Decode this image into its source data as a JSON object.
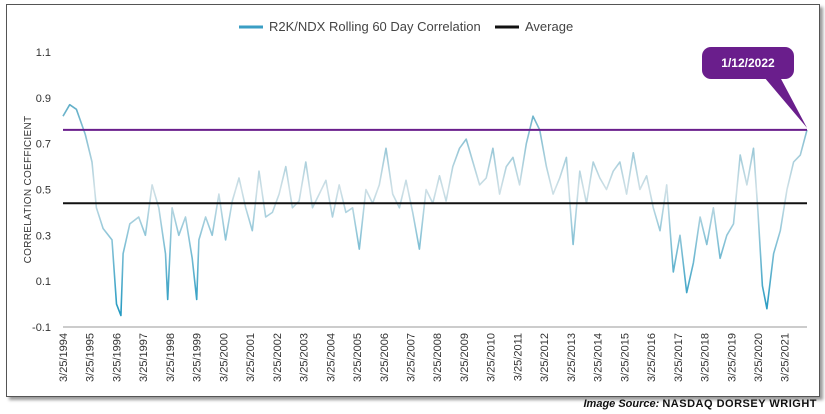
{
  "chart_data": {
    "type": "line",
    "title": "",
    "ylabel": "CORRELATION COEFFICIENT",
    "xlabel": "",
    "ylim": [
      -0.1,
      1.1
    ],
    "yticks": [
      "1.1",
      "0.9",
      "0.7",
      "0.5",
      "0.3",
      "0.1",
      "-0.1"
    ],
    "xticks": [
      "3/25/1994",
      "3/25/1995",
      "3/25/1996",
      "3/25/1997",
      "3/25/1998",
      "3/25/1999",
      "3/25/2000",
      "3/25/2001",
      "3/25/2002",
      "3/25/2003",
      "3/25/2004",
      "3/25/2005",
      "3/25/2006",
      "3/25/2007",
      "3/25/2008",
      "3/25/2009",
      "3/25/2010",
      "3/25/2011",
      "3/25/2012",
      "3/25/2013",
      "3/25/2014",
      "3/25/2015",
      "3/25/2016",
      "3/25/2017",
      "3/25/2018",
      "3/25/2019",
      "3/25/2020",
      "3/25/2021"
    ],
    "legend_position": "top",
    "grid": false,
    "series": [
      {
        "name": "R2K/NDX Rolling 60 Day Correlation",
        "color": "#3a9ec4",
        "x": [
          "1994-03",
          "1994-06",
          "1994-09",
          "1995-01",
          "1995-04",
          "1995-06",
          "1995-09",
          "1996-01",
          "1996-03",
          "1996-05",
          "1996-06",
          "1996-09",
          "1997-01",
          "1997-04",
          "1997-07",
          "1997-10",
          "1998-01",
          "1998-02",
          "1998-04",
          "1998-07",
          "1998-10",
          "1999-01",
          "1999-03",
          "1999-04",
          "1999-07",
          "1999-10",
          "2000-01",
          "2000-04",
          "2000-07",
          "2000-10",
          "2001-01",
          "2001-04",
          "2001-07",
          "2001-10",
          "2002-01",
          "2002-04",
          "2002-07",
          "2002-10",
          "2003-01",
          "2003-04",
          "2003-07",
          "2003-10",
          "2004-01",
          "2004-04",
          "2004-07",
          "2004-10",
          "2005-01",
          "2005-04",
          "2005-07",
          "2005-10",
          "2006-01",
          "2006-04",
          "2006-07",
          "2006-10",
          "2007-01",
          "2007-04",
          "2007-07",
          "2007-10",
          "2008-01",
          "2008-04",
          "2008-07",
          "2008-10",
          "2009-01",
          "2009-04",
          "2009-07",
          "2009-10",
          "2010-01",
          "2010-04",
          "2010-07",
          "2010-10",
          "2011-01",
          "2011-04",
          "2011-07",
          "2011-10",
          "2012-01",
          "2012-04",
          "2012-07",
          "2012-10",
          "2013-01",
          "2013-04",
          "2013-07",
          "2013-10",
          "2014-01",
          "2014-04",
          "2014-07",
          "2014-10",
          "2015-01",
          "2015-04",
          "2015-07",
          "2015-10",
          "2016-01",
          "2016-04",
          "2016-07",
          "2016-10",
          "2017-01",
          "2017-04",
          "2017-07",
          "2017-10",
          "2018-01",
          "2018-04",
          "2018-07",
          "2018-10",
          "2019-01",
          "2019-04",
          "2019-07",
          "2019-10",
          "2020-01",
          "2020-03",
          "2020-05",
          "2020-07",
          "2020-10",
          "2021-01",
          "2021-04",
          "2021-07",
          "2021-10",
          "2022-01"
        ],
        "values": [
          0.82,
          0.87,
          0.85,
          0.74,
          0.62,
          0.42,
          0.33,
          0.28,
          0.0,
          -0.05,
          0.22,
          0.35,
          0.38,
          0.3,
          0.52,
          0.42,
          0.22,
          0.02,
          0.42,
          0.3,
          0.38,
          0.2,
          0.02,
          0.28,
          0.38,
          0.3,
          0.48,
          0.28,
          0.45,
          0.55,
          0.42,
          0.32,
          0.58,
          0.38,
          0.4,
          0.48,
          0.6,
          0.42,
          0.45,
          0.62,
          0.42,
          0.48,
          0.54,
          0.38,
          0.52,
          0.4,
          0.42,
          0.24,
          0.5,
          0.44,
          0.52,
          0.68,
          0.48,
          0.42,
          0.54,
          0.4,
          0.24,
          0.5,
          0.44,
          0.56,
          0.45,
          0.6,
          0.68,
          0.72,
          0.62,
          0.52,
          0.55,
          0.68,
          0.48,
          0.6,
          0.64,
          0.52,
          0.7,
          0.82,
          0.76,
          0.6,
          0.48,
          0.55,
          0.64,
          0.26,
          0.58,
          0.44,
          0.62,
          0.55,
          0.5,
          0.58,
          0.62,
          0.48,
          0.66,
          0.5,
          0.56,
          0.42,
          0.32,
          0.52,
          0.14,
          0.3,
          0.05,
          0.18,
          0.38,
          0.26,
          0.42,
          0.2,
          0.3,
          0.35,
          0.65,
          0.52,
          0.68,
          0.4,
          0.08,
          -0.02,
          0.22,
          0.32,
          0.5,
          0.62,
          0.65,
          0.76
        ]
      },
      {
        "name": "Average",
        "color": "#111111",
        "x": [
          "1994-03",
          "2022-01"
        ],
        "values": [
          0.44,
          0.44
        ]
      }
    ],
    "annotations": [
      {
        "text": "1/12/2022",
        "x": "2022-01",
        "y": 0.76,
        "color": "#6a1e8c"
      }
    ],
    "reference_line": {
      "y": 0.76,
      "color": "#6a1e8c"
    }
  },
  "source": {
    "prefix": "Image Source:",
    "brand": "NASDAQ DORSEY WRIGHT"
  }
}
